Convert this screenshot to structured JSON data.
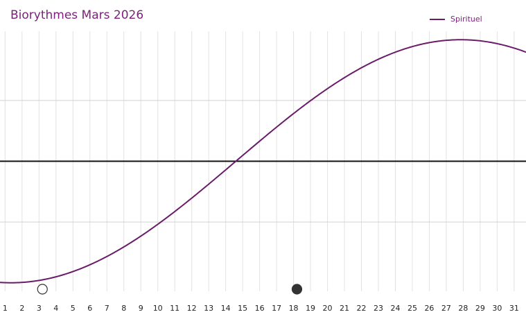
{
  "title": "Biorythmes Mars 2026",
  "legend": [
    {
      "name": "Spirituel",
      "color": "#6a1b6a"
    }
  ],
  "chart_data": {
    "type": "line",
    "title": "Biorythmes Mars 2026",
    "xlabel": "",
    "ylabel": "",
    "x": [
      1,
      2,
      3,
      4,
      5,
      6,
      7,
      8,
      9,
      10,
      11,
      12,
      13,
      14,
      15,
      16,
      17,
      18,
      19,
      20,
      21,
      22,
      23,
      24,
      25,
      26,
      27,
      28,
      29,
      30,
      31
    ],
    "xlim": [
      0.7,
      31.7
    ],
    "ylim": [
      -1.07,
      1.07
    ],
    "y_gridlines": [
      -0.5,
      0,
      0.5
    ],
    "grid": true,
    "legend_position": "top-right",
    "series": [
      {
        "name": "Spirituel",
        "color": "#6a1b6a",
        "model": "sine",
        "period_days": 53,
        "zero_crossing_day": 14.6,
        "amplitude": 1
      }
    ],
    "markers": [
      {
        "day": 3.2,
        "style": "hollow-circle"
      },
      {
        "day": 18.2,
        "style": "filled-circle",
        "color": "#333333"
      }
    ]
  }
}
